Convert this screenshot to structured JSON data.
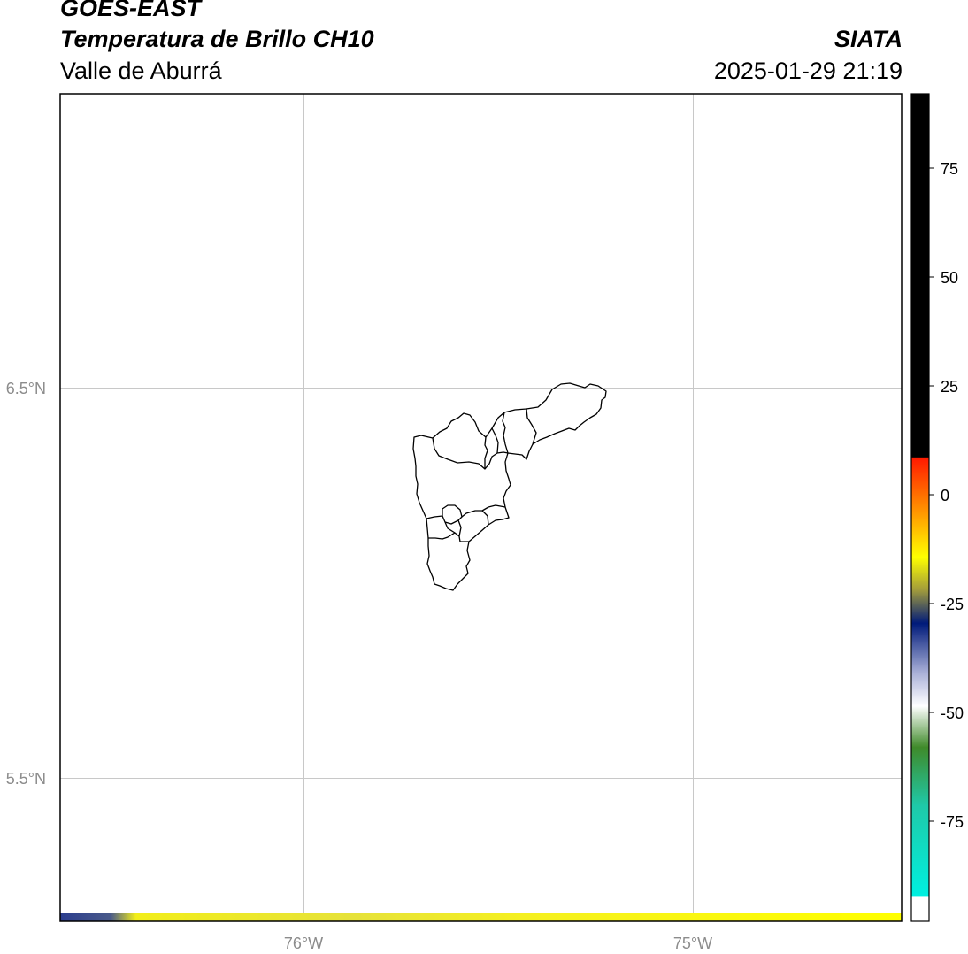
{
  "header": {
    "satellite": "GOES-EAST",
    "product": "Temperatura de Brillo CH10",
    "region": "Valle de Aburrá",
    "organization": "SIATA",
    "datetime": "2025-01-29 21:19"
  },
  "map": {
    "lat_labels": [
      "6.5°N",
      "5.5°N"
    ],
    "lon_labels": [
      "76°W",
      "75°W"
    ],
    "gridlines": true,
    "boundary_color": "#000000",
    "strip_colors": [
      "#2b3d8e",
      "#f2ee1a",
      "#ffff00"
    ]
  },
  "colorbar": {
    "ticks": [
      "75",
      "50",
      "25",
      "0",
      "-25",
      "-50",
      "-75"
    ],
    "colors": {
      "warm_top": "#000000",
      "red": "#ff2a00",
      "orange": "#ff8c00",
      "yellow": "#ffff00",
      "olive": "#a09a3c",
      "navy": "#001a7a",
      "lavender": "#aab1d8",
      "white": "#ffffff",
      "green": "#3f8a2a",
      "teal": "#1fc9a8",
      "cyan": "#00f0e0"
    }
  }
}
